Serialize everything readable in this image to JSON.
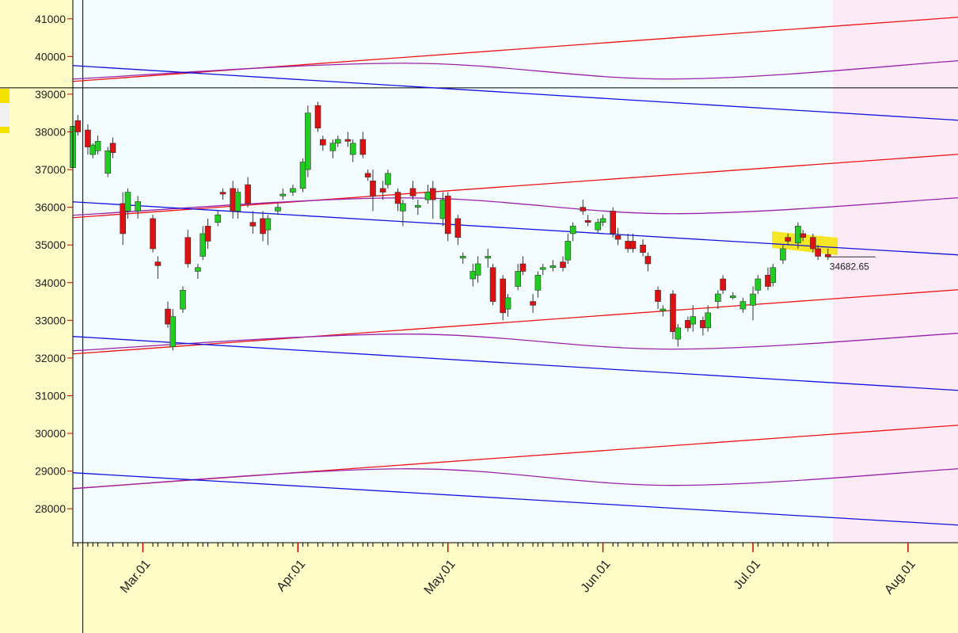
{
  "chart_data": {
    "type": "candlestick",
    "up_color": "#22cc22",
    "down_color": "#dd1111",
    "xlim": [
      "02-15",
      "08-11"
    ],
    "ylim": [
      27100,
      41500
    ],
    "yticks": [
      28000,
      29000,
      30000,
      31000,
      32000,
      33000,
      34000,
      35000,
      36000,
      37000,
      38000,
      39000,
      40000,
      41000
    ],
    "xticks": [
      {
        "value": "03-01",
        "label": "Mar.01"
      },
      {
        "value": "04-01",
        "label": "Apr.01"
      },
      {
        "value": "05-01",
        "label": "May.01"
      },
      {
        "value": "06-01",
        "label": "Jun.01"
      },
      {
        "value": "07-01",
        "label": "Jul.01"
      },
      {
        "value": "08-01",
        "label": "Aug.01"
      }
    ],
    "x": [
      "02-15",
      "02-16",
      "02-18",
      "02-19",
      "02-20",
      "02-22",
      "02-23",
      "02-25",
      "02-26",
      "02-28",
      "03-03",
      "03-04",
      "03-06",
      "03-07",
      "03-09",
      "03-10",
      "03-12",
      "03-13",
      "03-14",
      "03-16",
      "03-17",
      "03-19",
      "03-20",
      "03-22",
      "03-23",
      "03-25",
      "03-26",
      "03-28",
      "03-29",
      "03-31",
      "04-02",
      "04-03",
      "04-05",
      "04-06",
      "04-08",
      "04-09",
      "04-11",
      "04-12",
      "04-14",
      "04-15",
      "04-16",
      "04-18",
      "04-19",
      "04-21",
      "04-22",
      "04-24",
      "04-25",
      "04-27",
      "04-28",
      "04-30",
      "05-01",
      "05-03",
      "05-04",
      "05-06",
      "05-07",
      "05-09",
      "05-10",
      "05-12",
      "05-13",
      "05-15",
      "05-16",
      "05-18",
      "05-19",
      "05-20",
      "05-22",
      "05-24",
      "05-25",
      "05-26",
      "05-28",
      "05-29",
      "05-31",
      "06-01",
      "06-03",
      "06-04",
      "06-06",
      "06-07",
      "06-09",
      "06-10",
      "06-12",
      "06-13",
      "06-15",
      "06-16",
      "06-18",
      "06-19",
      "06-21",
      "06-22",
      "06-24",
      "06-25",
      "06-27",
      "06-29",
      "07-01",
      "07-02",
      "07-04",
      "07-05",
      "07-07",
      "07-08",
      "07-10",
      "07-11",
      "07-13",
      "07-14",
      "07-16"
    ],
    "open": [
      37050,
      38300,
      38050,
      37400,
      37500,
      36900,
      37700,
      36100,
      35900,
      35900,
      35700,
      34550,
      33300,
      32300,
      33300,
      35200,
      34300,
      34700,
      35500,
      35600,
      36400,
      36500,
      35900,
      36600,
      35600,
      35700,
      35400,
      35900,
      36300,
      36400,
      36500,
      37000,
      38700,
      37800,
      37500,
      37700,
      37800,
      37400,
      37800,
      36900,
      36700,
      36500,
      36600,
      36400,
      35900,
      36500,
      36000,
      36200,
      36500,
      35700,
      36300,
      35700,
      34650,
      34100,
      34200,
      34650,
      34400,
      34100,
      33300,
      33900,
      34500,
      33500,
      33800,
      34350,
      34400,
      34550,
      34600,
      35300,
      36000,
      35650,
      35400,
      35600,
      35900,
      35250,
      35100,
      35100,
      35000,
      34700,
      33800,
      33250,
      33700,
      32500,
      33000,
      32900,
      33000,
      32800,
      33500,
      34100,
      33600,
      33300,
      33400,
      33800,
      34200,
      34000,
      34600,
      35200,
      35050,
      35300,
      35200,
      34900,
      34750
    ],
    "high": [
      38300,
      38450,
      38200,
      37700,
      37900,
      37600,
      37850,
      36400,
      36500,
      36300,
      35800,
      34700,
      33500,
      33300,
      33900,
      35400,
      34500,
      35500,
      35700,
      35900,
      36500,
      36700,
      36500,
      36800,
      35900,
      35900,
      35800,
      36100,
      36500,
      36600,
      37300,
      38700,
      38800,
      37900,
      37800,
      37900,
      38000,
      37800,
      38000,
      37000,
      37000,
      36700,
      37000,
      36500,
      36200,
      36700,
      36200,
      36600,
      36700,
      36400,
      36400,
      35800,
      34800,
      34500,
      34700,
      34900,
      34500,
      34200,
      33700,
      34500,
      34700,
      33700,
      34300,
      34500,
      34600,
      34700,
      35300,
      35600,
      36200,
      35800,
      35700,
      35800,
      36000,
      35450,
      35300,
      35300,
      35150,
      34800,
      33900,
      33400,
      33800,
      32900,
      33100,
      33400,
      33100,
      33400,
      33800,
      34200,
      33750,
      33600,
      33900,
      34200,
      34400,
      34500,
      35000,
      35300,
      35600,
      35400,
      35300,
      35000,
      34900
    ],
    "low": [
      36600,
      37900,
      37400,
      37300,
      37400,
      36800,
      37300,
      35000,
      35700,
      35700,
      34800,
      34100,
      32800,
      32200,
      33200,
      34400,
      34100,
      34600,
      34900,
      35500,
      36200,
      35700,
      35700,
      36000,
      35300,
      35100,
      35000,
      35800,
      36200,
      36300,
      36400,
      36800,
      38000,
      37500,
      37300,
      37600,
      37600,
      37200,
      37300,
      36700,
      35900,
      36200,
      36500,
      35900,
      35500,
      36200,
      35800,
      36100,
      35700,
      35500,
      35100,
      35000,
      34500,
      33900,
      34000,
      34400,
      33400,
      33000,
      33100,
      33800,
      34200,
      33200,
      33600,
      34200,
      34300,
      34300,
      34500,
      35100,
      35800,
      35500,
      35300,
      35500,
      35200,
      35000,
      34800,
      34800,
      34700,
      34300,
      33300,
      33100,
      32500,
      32300,
      32700,
      32700,
      32600,
      32700,
      33300,
      33700,
      33550,
      33200,
      33000,
      33700,
      33800,
      33900,
      34500,
      35000,
      34900,
      35100,
      34800,
      34600,
      34600
    ],
    "close": [
      38150,
      38000,
      37600,
      37650,
      37750,
      37500,
      37450,
      35300,
      36400,
      36150,
      34900,
      34450,
      32900,
      33100,
      33800,
      34500,
      34400,
      35300,
      35100,
      35800,
      36350,
      35900,
      36400,
      36100,
      35500,
      35300,
      35700,
      36000,
      36350,
      36500,
      37200,
      38500,
      38100,
      37650,
      37700,
      37800,
      37750,
      37700,
      37400,
      36800,
      36300,
      36400,
      36900,
      36100,
      36100,
      36300,
      36050,
      36400,
      36200,
      36200,
      35300,
      35200,
      34700,
      34300,
      34500,
      34700,
      33500,
      33200,
      33600,
      34300,
      34300,
      33400,
      34200,
      34400,
      34450,
      34400,
      35100,
      35500,
      35900,
      35600,
      35600,
      35700,
      35300,
      35150,
      34900,
      34900,
      34800,
      34500,
      33500,
      33300,
      32700,
      32800,
      32800,
      33100,
      32800,
      33200,
      33700,
      33800,
      33650,
      33500,
      33700,
      34100,
      33900,
      34400,
      34900,
      35100,
      35500,
      35200,
      34900,
      34700,
      34682.65
    ],
    "lines": [
      {
        "color": "#ee1111",
        "x": [
          "02-15",
          "08-11"
        ],
        "values": [
          39340,
          41043
        ]
      },
      {
        "color": "#9922aa",
        "x": [
          "02-15",
          "04-22",
          "06-15",
          "08-11"
        ],
        "values": [
          39403,
          39823,
          39403,
          39886
        ]
      },
      {
        "color": "#1111dd",
        "x": [
          "02-15",
          "08-11"
        ],
        "values": [
          39760,
          38310
        ]
      },
      {
        "color": "#ee1111",
        "x": [
          "02-15",
          "08-11"
        ],
        "values": [
          35725,
          37406
        ]
      },
      {
        "color": "#9922aa",
        "x": [
          "02-15",
          "04-22",
          "06-15",
          "08-11"
        ],
        "values": [
          35788,
          36250,
          35830,
          36250
        ]
      },
      {
        "color": "#1111dd",
        "x": [
          "02-15",
          "08-11"
        ],
        "values": [
          36145,
          34737
        ]
      },
      {
        "color": "#ee1111",
        "x": [
          "02-15",
          "08-11"
        ],
        "values": [
          32109,
          33812
        ]
      },
      {
        "color": "#9922aa",
        "x": [
          "02-15",
          "04-22",
          "06-15",
          "08-11"
        ],
        "values": [
          32193,
          32635,
          32235,
          32656
        ]
      },
      {
        "color": "#1111dd",
        "x": [
          "02-15",
          "08-11"
        ],
        "values": [
          32572,
          31142
        ]
      },
      {
        "color": "#ee1111",
        "x": [
          "02-15",
          "08-11"
        ],
        "values": [
          28536,
          30217
        ]
      },
      {
        "color": "#9922aa",
        "x": [
          "02-15",
          "04-22",
          "06-15",
          "08-11"
        ],
        "values": [
          28536,
          29061,
          28620,
          29061
        ]
      },
      {
        "color": "#1111dd",
        "x": [
          "02-15",
          "08-11"
        ],
        "values": [
          28956,
          27568
        ]
      }
    ],
    "shaded_from": "07-17",
    "crosshair": {
      "x": "02-17",
      "y": 39170
    }
  }
}
